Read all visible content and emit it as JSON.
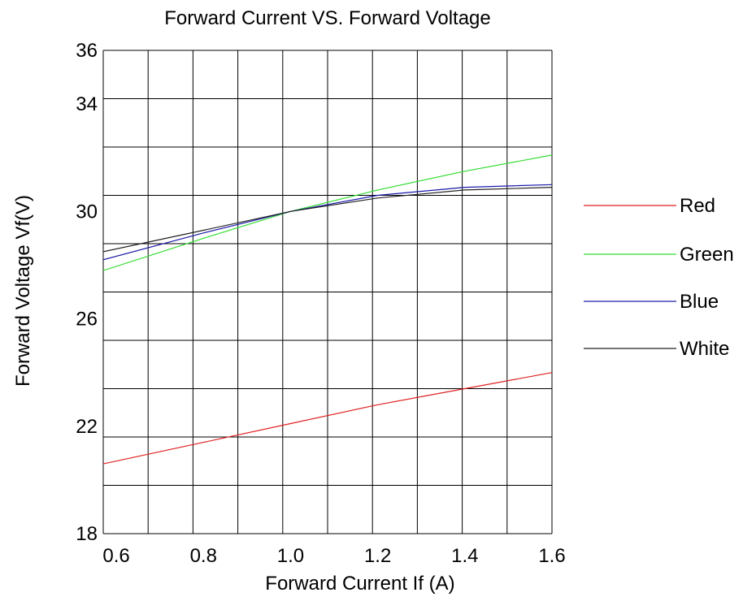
{
  "chart_data": {
    "type": "line",
    "title": "Forward Current  VS. Forward Voltage",
    "xlabel": "Forward Current  If (A)",
    "ylabel": "Forward Voltage Vf(V)",
    "xlim": [
      0.57,
      1.6
    ],
    "ylim": [
      18,
      36
    ],
    "x_ticks": [
      0.6,
      0.8,
      1.0,
      1.2,
      1.4,
      1.6
    ],
    "x_tick_labels": [
      "0.6",
      "0.8",
      "1.0",
      "1.2",
      "1.4",
      "1.6"
    ],
    "y_ticks": [
      18,
      22,
      26,
      30,
      34,
      36
    ],
    "y_tick_labels": [
      "18",
      "22",
      "26",
      "30",
      "34",
      "36"
    ],
    "grid": true,
    "legend_placement": "right",
    "series": [
      {
        "name": "Red",
        "color": "#e02020",
        "x": [
          0.57,
          0.8,
          1.0,
          1.2,
          1.4,
          1.6
        ],
        "y": [
          20.6,
          21.4,
          22.1,
          22.8,
          23.4,
          24.0
        ]
      },
      {
        "name": "Green",
        "color": "#33dd33",
        "x": [
          0.57,
          0.8,
          1.0,
          1.2,
          1.4,
          1.6
        ],
        "y": [
          27.8,
          29.0,
          30.0,
          30.8,
          31.5,
          32.1
        ]
      },
      {
        "name": "Blue",
        "color": "#1a1aaa",
        "x": [
          0.57,
          0.8,
          1.0,
          1.2,
          1.4,
          1.6
        ],
        "y": [
          28.2,
          29.2,
          30.0,
          30.6,
          30.9,
          31.0
        ]
      },
      {
        "name": "White",
        "color": "#222222",
        "x": [
          0.57,
          0.8,
          1.0,
          1.2,
          1.4,
          1.6
        ],
        "y": [
          28.5,
          29.3,
          30.0,
          30.5,
          30.8,
          30.9
        ]
      }
    ]
  }
}
